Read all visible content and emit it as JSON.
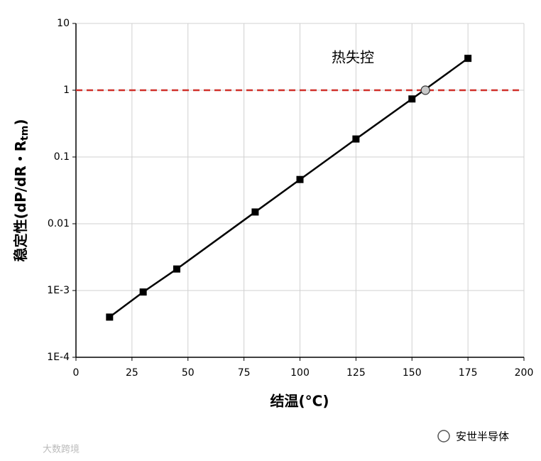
{
  "chart_data": {
    "type": "line",
    "annotation": "热失控",
    "xlabel": "结温(°C)",
    "ylabel": {
      "main": "稳定性(dP/dR・R",
      "sub": "tm",
      "end": ")"
    },
    "x": [
      15,
      30,
      45,
      80,
      100,
      125,
      150,
      175
    ],
    "series": [
      {
        "color": "#000000",
        "values": [
          0.0004,
          0.00095,
          0.0021,
          0.015,
          0.046,
          0.186,
          0.74,
          3.0
        ]
      }
    ],
    "threshold": {
      "value": 1,
      "color": "#d0302a"
    },
    "highlight": {
      "x": 156,
      "y": 1,
      "color": "#c8c8c8"
    },
    "xlim": [
      0,
      200
    ],
    "xticks": [
      0,
      25,
      50,
      75,
      100,
      125,
      150,
      175,
      200
    ],
    "ylim": [
      0.0001,
      10
    ],
    "log_y": true,
    "yticks": [
      {
        "value": 0.0001,
        "label": "1E-4"
      },
      {
        "value": 0.001,
        "label": "1E-3"
      },
      0.01,
      0.1,
      1,
      10
    ],
    "grid": true
  },
  "watermarks": {
    "left": "大数跨境",
    "right": "安世半导体"
  }
}
